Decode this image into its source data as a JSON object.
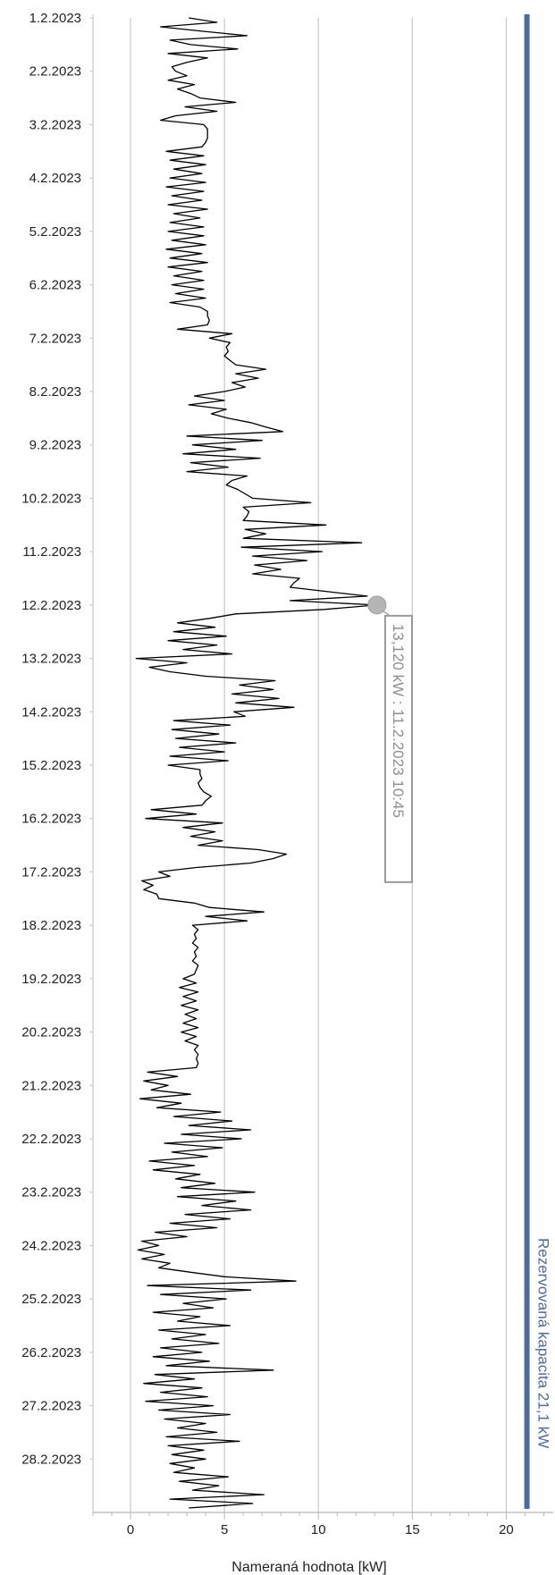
{
  "chart_data": {
    "type": "line",
    "orientation": "horizontal-time-vertical",
    "xlabel": "Nameraná hodnota [kW]",
    "xlim": [
      -2,
      22.5
    ],
    "x_ticks": [
      0,
      5,
      10,
      15,
      20
    ],
    "x_tick_labels": [
      "0",
      "5",
      "10",
      "15",
      "20"
    ],
    "grid": true,
    "time_range": [
      "1.2.2023",
      "1.3.2023"
    ],
    "date_labels": [
      "1.2.2023",
      "2.2.2023",
      "3.2.2023",
      "4.2.2023",
      "5.2.2023",
      "6.2.2023",
      "7.2.2023",
      "8.2.2023",
      "9.2.2023",
      "10.2.2023",
      "11.2.2023",
      "12.2.2023",
      "13.2.2023",
      "14.2.2023",
      "15.2.2023",
      "16.2.2023",
      "17.2.2023",
      "18.2.2023",
      "19.2.2023",
      "20.2.2023",
      "21.2.2023",
      "22.2.2023",
      "23.2.2023",
      "24.2.2023",
      "25.2.2023",
      "26.2.2023",
      "27.2.2023",
      "28.2.2023"
    ],
    "series": [
      {
        "step_hours": 2,
        "color": "#000000",
        "values": [
          3.1,
          4.6,
          1.6,
          3.8,
          6.2,
          2.1,
          3.2,
          5.7,
          2.0,
          4.1,
          3.0,
          2.2,
          2.4,
          3.0,
          2.0,
          3.4,
          2.5,
          3.2,
          3.7,
          5.6,
          2.9,
          4.6,
          2.4,
          1.6,
          3.9,
          4.1,
          4.1,
          4.1,
          4.0,
          3.8,
          1.9,
          3.9,
          2.1,
          4.0,
          2.3,
          3.8,
          2.1,
          4.0,
          1.9,
          3.9,
          2.2,
          3.8,
          2.0,
          4.1,
          2.3,
          3.7,
          2.1,
          3.9,
          2.0,
          3.9,
          2.2,
          4.0,
          1.9,
          3.8,
          2.1,
          4.1,
          2.0,
          3.8,
          2.3,
          3.9,
          2.2,
          3.9,
          2.4,
          4.0,
          2.1,
          3.7,
          4.1,
          4.1,
          4.2,
          4.1,
          2.5,
          5.4,
          4.2,
          5.3,
          5.1,
          5.2,
          5.0,
          5.3,
          5.6,
          7.2,
          5.6,
          6.8,
          5.4,
          6.1,
          5.0,
          3.4,
          5.0,
          3.1,
          5.1,
          4.3,
          5.2,
          6.4,
          7.2,
          8.1,
          3.0,
          7.0,
          3.3,
          5.6,
          2.8,
          6.9,
          3.2,
          5.2,
          3.0,
          6.2,
          5.4,
          5.1,
          5.7,
          6.1,
          6.5,
          9.6,
          6.0,
          6.3,
          6.2,
          6.0,
          10.4,
          6.1,
          7.2,
          6.0,
          12.3,
          5.9,
          10.2,
          6.5,
          9.4,
          6.6,
          8.0,
          6.5,
          9.0,
          8.7,
          8.5,
          10.5,
          12.6,
          8.5,
          13.1,
          10.3,
          5.6,
          4.2,
          2.5,
          4.5,
          2.3,
          5.1,
          2.0,
          4.6,
          2.8,
          5.4,
          0.3,
          3.0,
          1.0,
          2.1,
          4.0,
          7.7,
          5.8,
          7.6,
          5.4,
          7.9,
          5.6,
          8.7,
          5.5,
          6.1,
          2.3,
          5.3,
          2.2,
          4.7,
          2.4,
          5.6,
          2.6,
          5.0,
          2.1,
          5.2,
          2.0,
          3.7,
          3.7,
          3.8,
          3.6,
          3.7,
          3.9,
          4.3,
          4.0,
          3.8,
          1.1,
          3.5,
          0.8,
          4.9,
          2.8,
          4.5,
          3.2,
          4.9,
          3.6,
          6.8,
          8.3,
          7.6,
          6.4,
          3.5,
          1.5,
          2.1,
          0.6,
          1.2,
          0.7,
          1.4,
          1.5,
          3.4,
          4.2,
          7.1,
          4.0,
          6.2,
          3.3,
          3.6,
          3.4,
          3.5,
          3.3,
          3.6,
          3.4,
          3.5,
          3.3,
          3.6,
          3.5,
          3.4,
          2.8,
          3.5,
          2.6,
          3.6,
          2.8,
          3.5,
          2.7,
          3.6,
          2.9,
          3.5,
          2.8,
          3.6,
          2.7,
          3.5,
          2.9,
          3.6,
          3.4,
          3.6,
          3.5,
          3.6,
          3.5,
          0.9,
          2.5,
          0.7,
          2.0,
          1.1,
          3.2,
          0.5,
          2.7,
          1.4,
          4.8,
          2.3,
          5.4,
          3.1,
          6.4,
          2.7,
          5.9,
          1.8,
          4.9,
          2.2,
          4.1,
          1.0,
          3.4,
          1.2,
          3.7,
          2.4,
          4.5,
          2.7,
          6.6,
          2.5,
          5.6,
          3.8,
          6.4,
          2.9,
          5.3,
          2.1,
          4.6,
          1.3,
          3.0,
          0.6,
          1.5,
          0.4,
          1.8,
          0.6,
          2.1,
          1.5,
          3.2,
          5.0,
          8.8,
          0.9,
          6.4,
          1.6,
          5.1,
          2.8,
          4.4,
          1.2,
          3.7,
          2.5,
          5.3,
          1.5,
          4.0,
          2.2,
          4.7,
          1.6,
          3.8,
          1.2,
          4.2,
          1.9,
          7.6,
          1.3,
          3.4,
          0.7,
          3.8,
          1.6,
          4.1,
          0.8,
          4.4,
          1.5,
          5.3,
          1.8,
          4.0,
          2.5,
          4.6,
          1.9,
          5.8,
          2.0,
          3.9,
          2.2,
          4.0,
          2.1,
          3.4,
          2.3,
          5.2,
          2.6,
          4.7,
          3.3,
          7.1,
          2.1,
          6.5,
          3.1
        ]
      },
      {
        "name": "Rezervovaná kapacita 21,1 kW",
        "type": "constant",
        "value": 21.1,
        "color": "#4f6a9f"
      }
    ],
    "annotations": [
      {
        "text": "13,120 kW : 11.2.2023 10:45",
        "x": 13.12,
        "datetime": "11.2.2023 10:45"
      }
    ]
  }
}
